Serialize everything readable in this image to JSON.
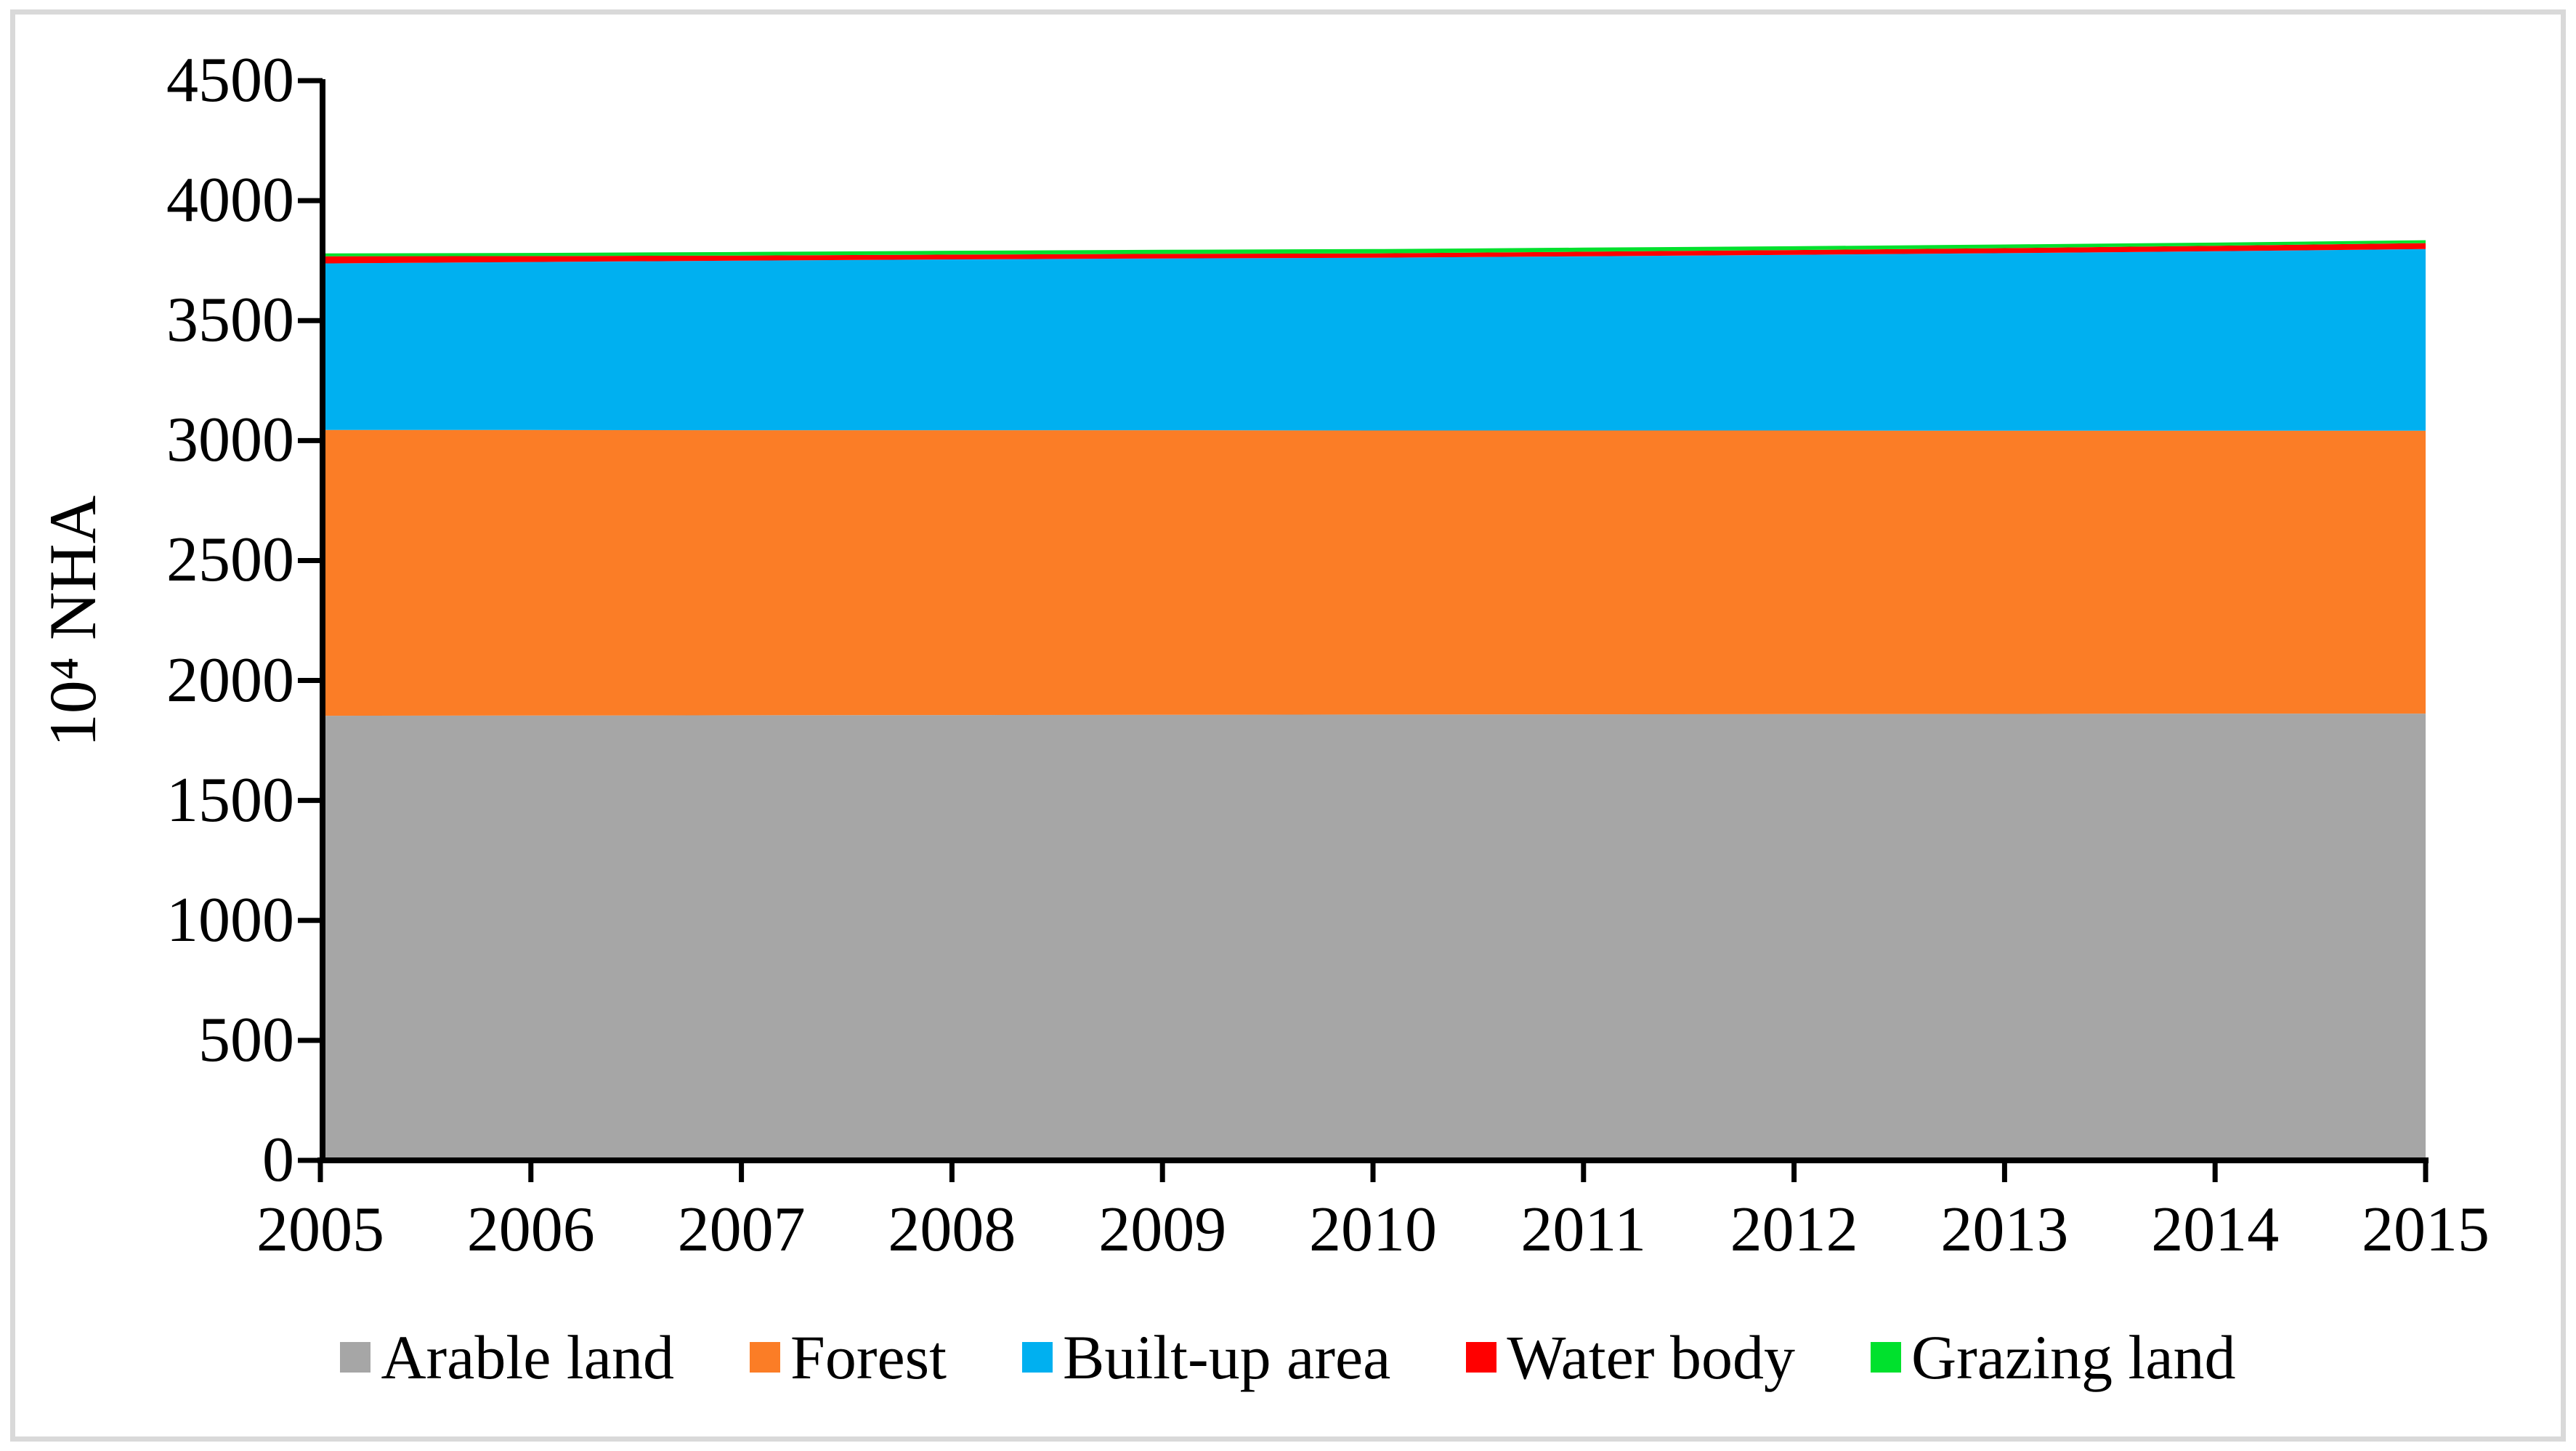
{
  "figure": {
    "background": "#FFFFFF",
    "border_color": "#D9D9D9",
    "axis_color": "#000000"
  },
  "chart_data": {
    "type": "area",
    "stacked": true,
    "title": "",
    "xlabel": "",
    "ylabel": "10⁴ NHA",
    "ylim": [
      0,
      4500
    ],
    "y_ticks": [
      0,
      500,
      1000,
      1500,
      2000,
      2500,
      3000,
      3500,
      4000,
      4500
    ],
    "grid": false,
    "legend_position": "bottom",
    "x": [
      2005,
      2006,
      2007,
      2008,
      2009,
      2010,
      2011,
      2012,
      2013,
      2014,
      2015
    ],
    "series": [
      {
        "name": "Arable land",
        "color": "#A6A6A6",
        "values": [
          1853,
          1854,
          1855,
          1856,
          1857,
          1858,
          1859,
          1860,
          1861,
          1862,
          1862
        ]
      },
      {
        "name": "Forest",
        "color": "#FB7D26",
        "values": [
          1191,
          1190,
          1188,
          1187,
          1186,
          1184,
          1183,
          1182,
          1180,
          1179,
          1179
        ]
      },
      {
        "name": "Built-up area",
        "color": "#00B0F0",
        "values": [
          694,
          700,
          707,
          712,
          716,
          720,
          726,
          732,
          740,
          748,
          757
        ]
      },
      {
        "name": "Water body",
        "color": "#FF0000",
        "values": [
          30,
          25,
          21,
          20,
          19,
          18,
          19,
          20,
          21,
          23,
          25
        ]
      },
      {
        "name": "Grazing land",
        "color": "#00E12D",
        "values": [
          12,
          13,
          15,
          16,
          17,
          18,
          17,
          16,
          15,
          13,
          12
        ]
      }
    ]
  }
}
